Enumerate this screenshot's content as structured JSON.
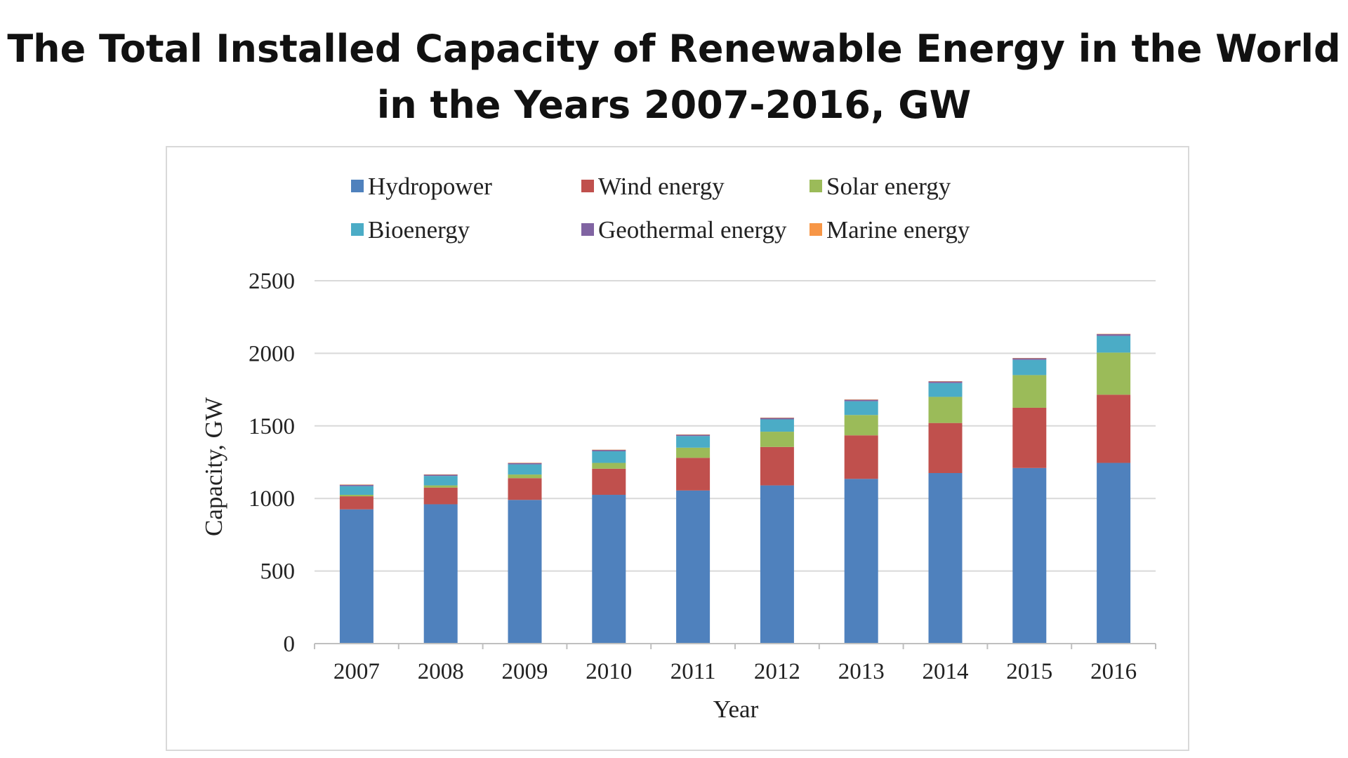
{
  "title": {
    "line1": "The Total Installed Capacity of Renewable Energy in the World",
    "line2": "in the Years 2007-2016, GW"
  },
  "chart_data": {
    "type": "bar",
    "stacked": true,
    "categories": [
      "2007",
      "2008",
      "2009",
      "2010",
      "2011",
      "2012",
      "2013",
      "2014",
      "2015",
      "2016"
    ],
    "series": [
      {
        "name": "Hydropower",
        "color": "#4f81bd",
        "values": [
          925,
          960,
          990,
          1025,
          1055,
          1090,
          1135,
          1175,
          1210,
          1245
        ]
      },
      {
        "name": "Wind energy",
        "color": "#c0504d",
        "values": [
          90,
          115,
          150,
          180,
          225,
          265,
          300,
          345,
          415,
          470
        ]
      },
      {
        "name": "Solar energy",
        "color": "#9bbb59",
        "values": [
          10,
          15,
          25,
          40,
          70,
          105,
          140,
          180,
          225,
          290
        ]
      },
      {
        "name": "Bioenergy",
        "color": "#4bacc6",
        "values": [
          60,
          65,
          70,
          80,
          80,
          85,
          95,
          95,
          105,
          115
        ]
      },
      {
        "name": "Geothermal energy",
        "color": "#8064a2",
        "values": [
          10,
          10,
          10,
          10,
          10,
          11,
          11,
          12,
          12,
          13
        ]
      },
      {
        "name": "Marine energy",
        "color": "#f79646",
        "values": [
          1,
          1,
          1,
          1,
          1,
          1,
          1,
          1,
          1,
          1
        ]
      }
    ],
    "title": "",
    "xlabel": "Year",
    "ylabel": "Capacity, GW",
    "ylim": [
      0,
      2500
    ],
    "yticks": [
      0,
      500,
      1000,
      1500,
      2000,
      2500
    ],
    "grid": true,
    "legend_position": "top"
  }
}
